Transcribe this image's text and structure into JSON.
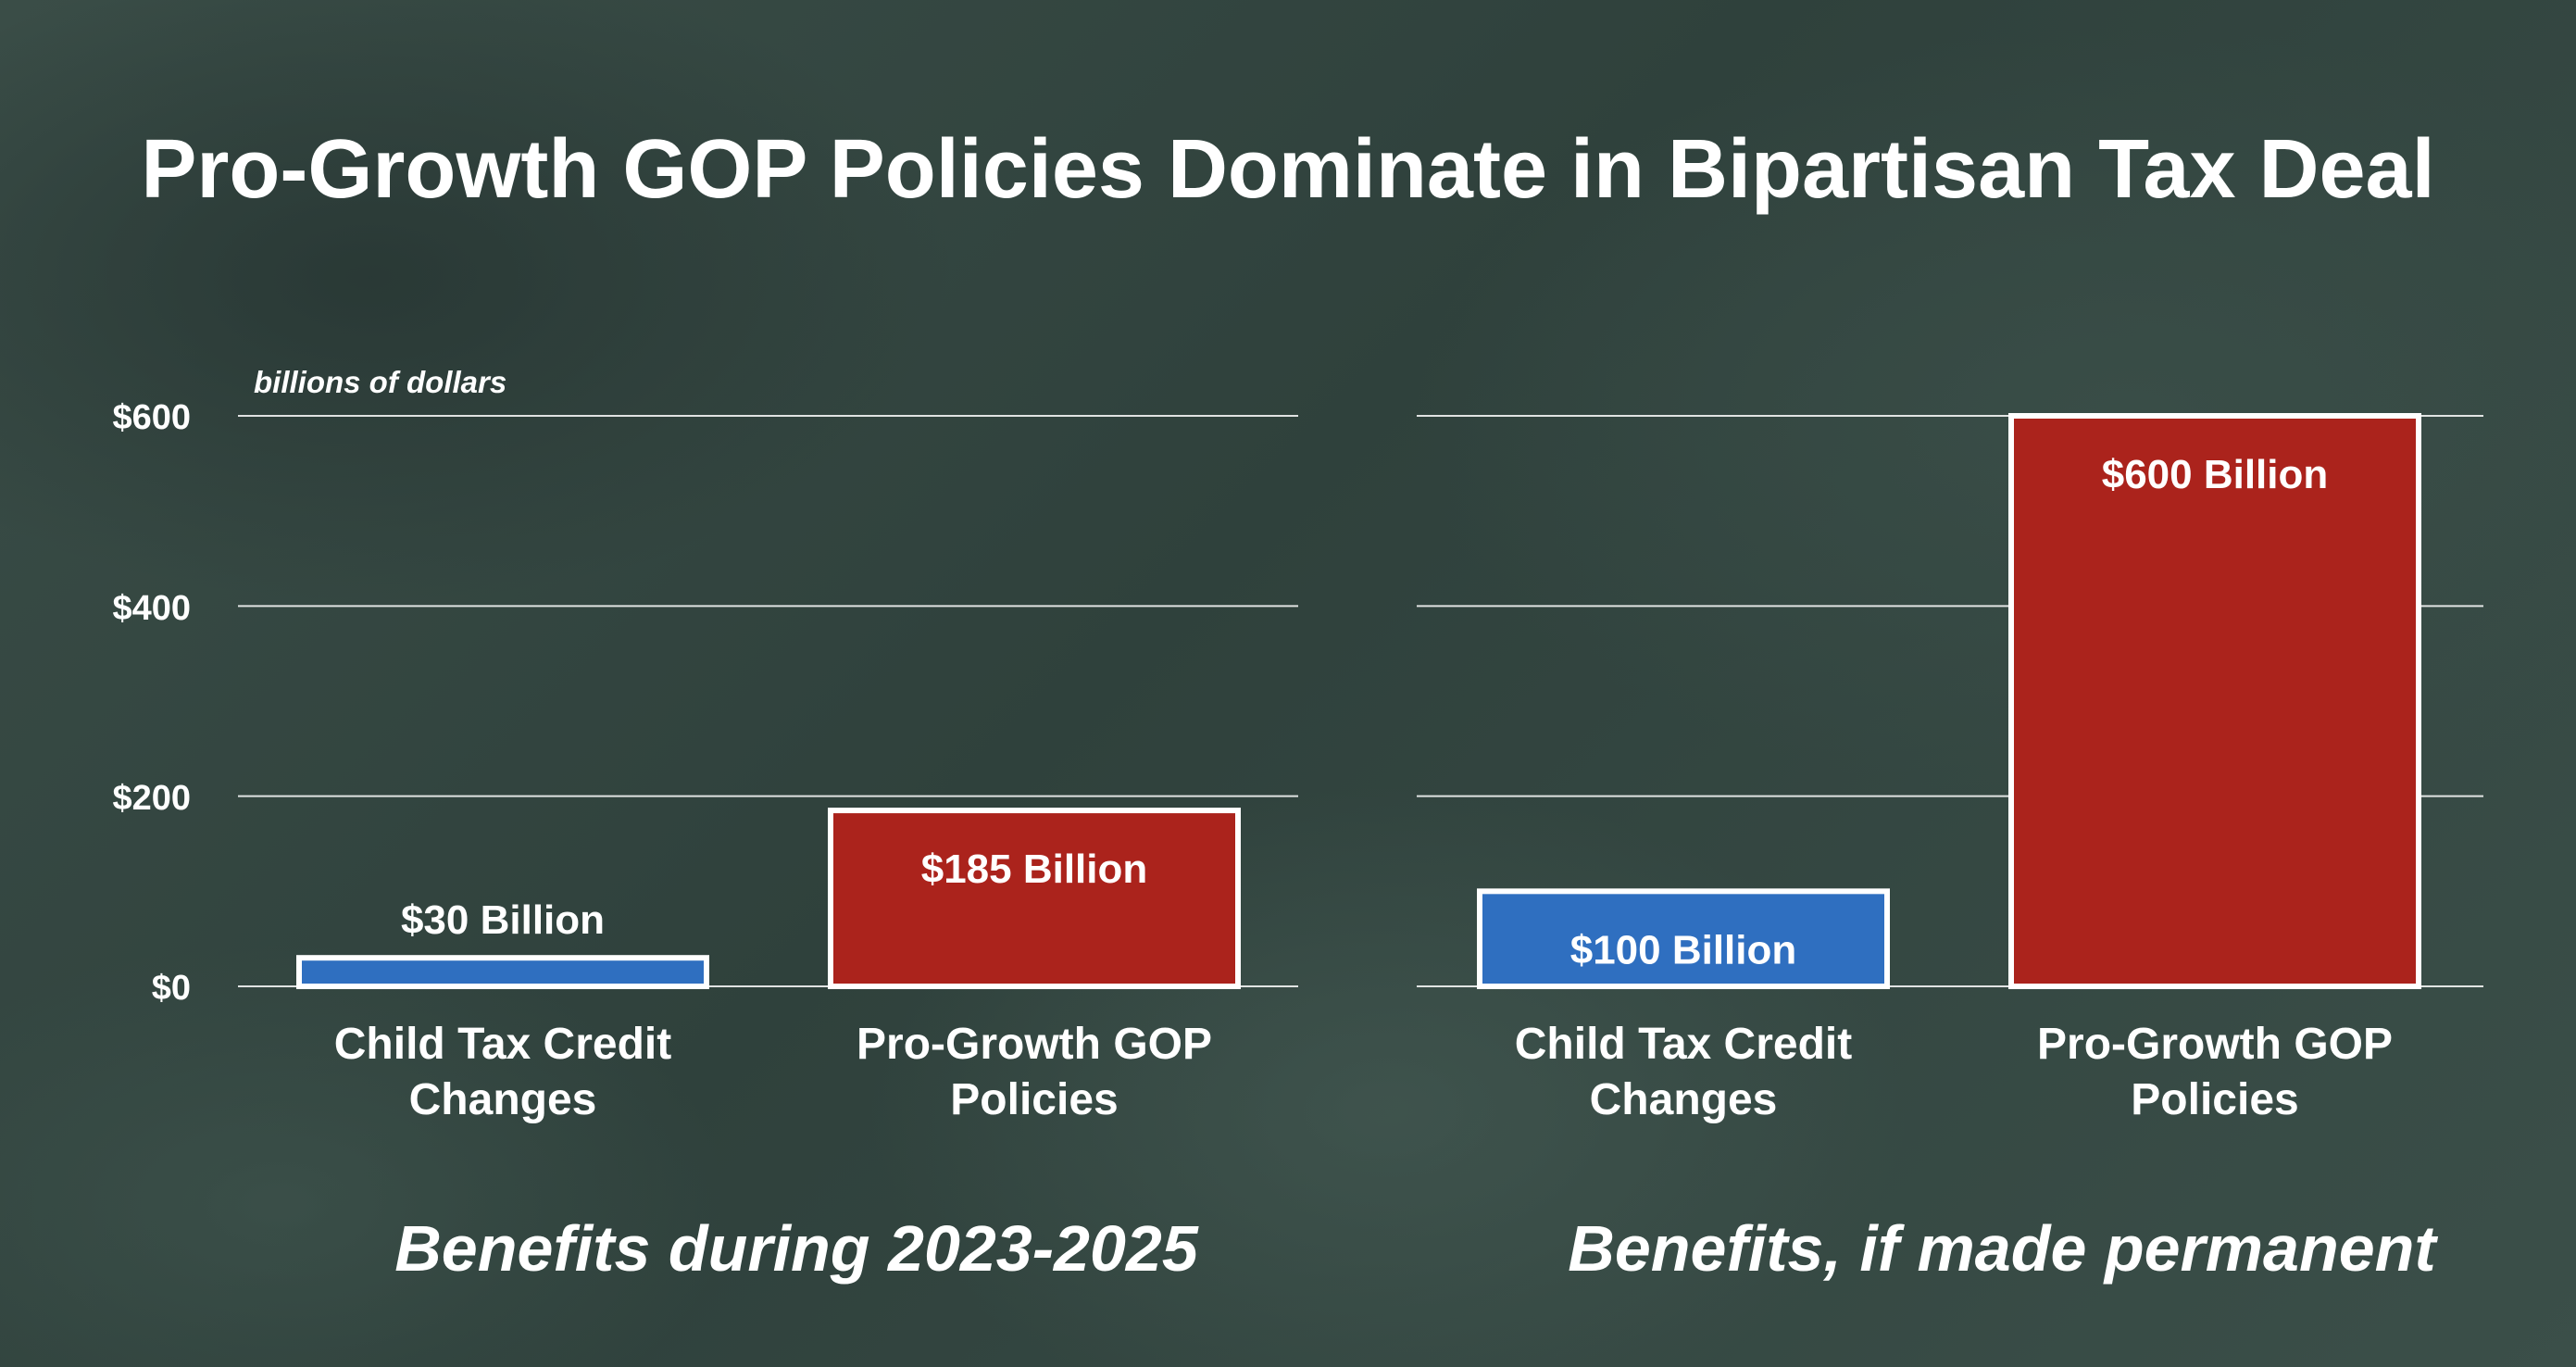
{
  "title": "Pro-Growth GOP Policies Dominate in Bipartisan Tax Deal",
  "unit_label": "billions of dollars",
  "y_ticks": [
    "$600",
    "$400",
    "$200",
    "$0"
  ],
  "colors": {
    "blue_bar": "#2f6fc0",
    "red_bar": "#ab231c",
    "bar_outline": "#ffffff",
    "gridline": "#ffffff"
  },
  "chart_data": [
    {
      "type": "bar",
      "subtitle": "Benefits during 2023-2025",
      "categories": [
        [
          "Child Tax Credit",
          "Changes"
        ],
        [
          "Pro-Growth GOP",
          "Policies"
        ]
      ],
      "values": [
        30,
        185
      ],
      "data_labels": [
        "$30 Billion",
        "$185 Billion"
      ],
      "ylim": [
        0,
        600
      ],
      "yticks": [
        0,
        200,
        400,
        600
      ],
      "grid": true
    },
    {
      "type": "bar",
      "subtitle": "Benefits, if made permanent",
      "categories": [
        [
          "Child Tax Credit",
          "Changes"
        ],
        [
          "Pro-Growth GOP",
          "Policies"
        ]
      ],
      "values": [
        100,
        600
      ],
      "data_labels": [
        "$100 Billion",
        "$600 Billion"
      ],
      "ylim": [
        0,
        600
      ],
      "yticks": [
        0,
        200,
        400,
        600
      ],
      "grid": true
    }
  ]
}
